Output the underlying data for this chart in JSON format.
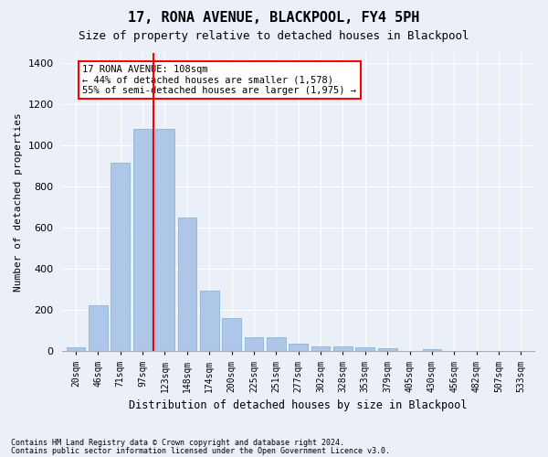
{
  "title": "17, RONA AVENUE, BLACKPOOL, FY4 5PH",
  "subtitle": "Size of property relative to detached houses in Blackpool",
  "xlabel": "Distribution of detached houses by size in Blackpool",
  "ylabel": "Number of detached properties",
  "categories": [
    "20sqm",
    "46sqm",
    "71sqm",
    "97sqm",
    "123sqm",
    "148sqm",
    "174sqm",
    "200sqm",
    "225sqm",
    "251sqm",
    "277sqm",
    "302sqm",
    "328sqm",
    "353sqm",
    "379sqm",
    "405sqm",
    "430sqm",
    "456sqm",
    "482sqm",
    "507sqm",
    "533sqm"
  ],
  "bar_values": [
    18,
    225,
    915,
    1080,
    1080,
    650,
    295,
    160,
    70,
    70,
    35,
    25,
    25,
    20,
    15,
    0,
    10,
    0,
    0,
    0,
    0
  ],
  "bar_color": "#aec6e8",
  "bar_edge_color": "#7bafd4",
  "vline_x_index": 3.5,
  "vline_color": "red",
  "annotation_text": "17 RONA AVENUE: 108sqm\n← 44% of detached houses are smaller (1,578)\n55% of semi-detached houses are larger (1,975) →",
  "annotation_box_color": "white",
  "annotation_box_edge": "red",
  "ylim": [
    0,
    1450
  ],
  "yticks": [
    0,
    200,
    400,
    600,
    800,
    1000,
    1200,
    1400
  ],
  "footnote1": "Contains HM Land Registry data © Crown copyright and database right 2024.",
  "footnote2": "Contains public sector information licensed under the Open Government Licence v3.0.",
  "bg_color": "#eaeff8",
  "plot_bg_color": "#eaeff8"
}
